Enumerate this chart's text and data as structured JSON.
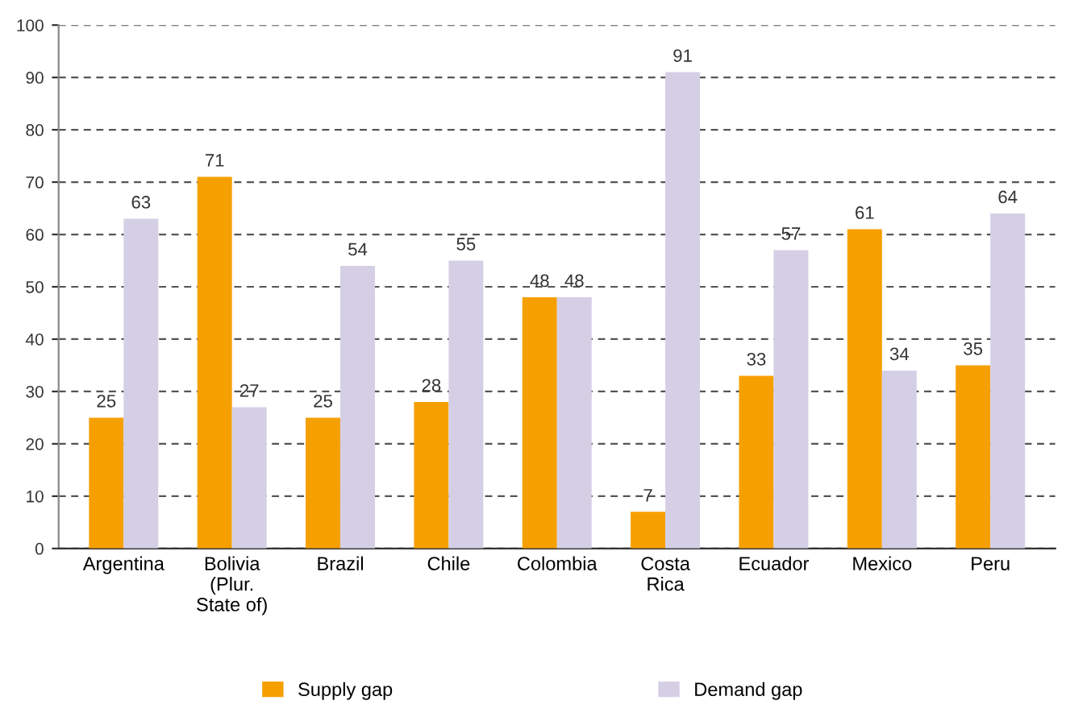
{
  "chart_data": {
    "type": "bar",
    "categories": [
      "Argentina",
      "Bolivia\n(Plur.\nState of)",
      "Brazil",
      "Chile",
      "Colombia",
      "Costa\nRica",
      "Ecuador",
      "Mexico",
      "Peru"
    ],
    "series": [
      {
        "name": "Supply gap",
        "color": "#f5a000",
        "values": [
          25,
          71,
          25,
          28,
          48,
          7,
          33,
          61,
          35
        ]
      },
      {
        "name": "Demand gap",
        "color": "#d5cfe6",
        "values": [
          63,
          27,
          54,
          55,
          48,
          91,
          57,
          34,
          64
        ]
      }
    ],
    "ylim": [
      0,
      100
    ],
    "yticks": [
      0,
      10,
      20,
      30,
      40,
      50,
      60,
      70,
      80,
      90,
      100
    ],
    "grid": "y",
    "data_labels": true,
    "legend": "bottom"
  }
}
